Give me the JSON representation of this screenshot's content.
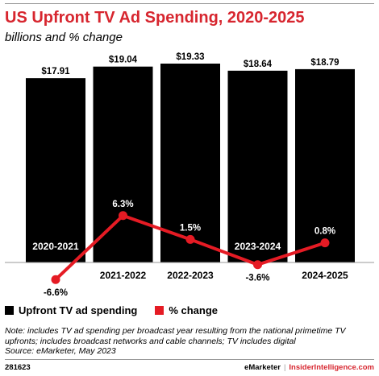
{
  "title": "US Upfront TV Ad Spending, 2020-2025",
  "subtitle": "billions and % change",
  "legend": {
    "bars_label": "Upfront TV ad spending",
    "line_label": "% change"
  },
  "notes": {
    "note": "Note: includes TV ad spending per broadcast year resulting from the national primetime TV upfronts; includes broadcast networks and cable channels; TV includes digital",
    "source": "Source: eMarketer, May 2023"
  },
  "footer": {
    "id": "281623",
    "brand_left": "eMarketer",
    "brand_right": "InsiderIntelligence.com"
  },
  "colors": {
    "bar": "#000000",
    "line": "#e51b24",
    "title": "#d7262f"
  },
  "chart_data": {
    "type": "bar",
    "categories": [
      "2020-2021",
      "2021-2022",
      "2022-2023",
      "2023-2024",
      "2024-2025"
    ],
    "series": [
      {
        "name": "Upfront TV ad spending",
        "type": "bar",
        "values": [
          17.91,
          19.04,
          19.33,
          18.64,
          18.79
        ],
        "labels": [
          "$17.91",
          "$19.04",
          "$19.33",
          "$18.64",
          "$18.79"
        ]
      },
      {
        "name": "% change",
        "type": "line",
        "values": [
          -6.6,
          6.3,
          1.5,
          -3.6,
          0.8
        ],
        "labels": [
          "-6.6%",
          "6.3%",
          "1.5%",
          "-3.6%",
          "0.8%"
        ]
      }
    ],
    "bar_ylim": [
      0,
      19.33
    ],
    "line_ylim": [
      -9,
      10
    ]
  }
}
